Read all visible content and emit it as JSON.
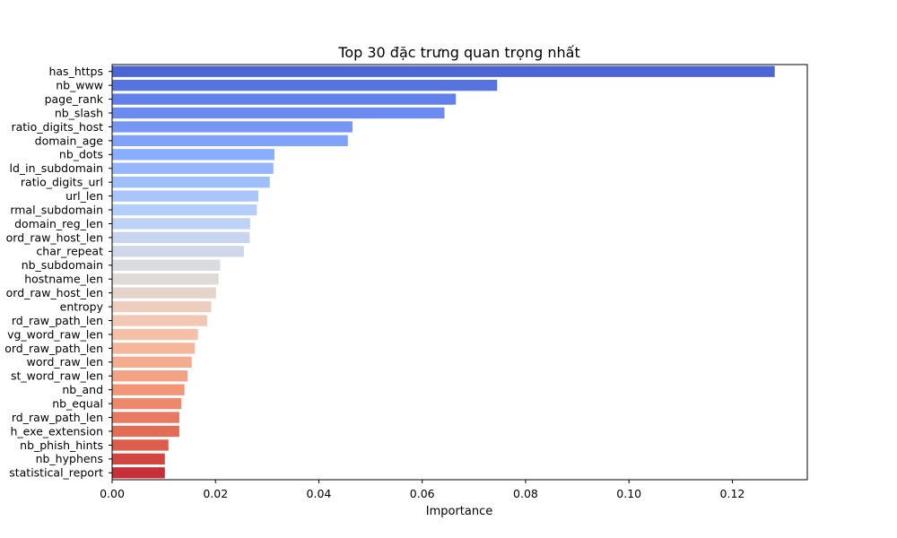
{
  "chart_data": {
    "type": "bar",
    "orientation": "horizontal",
    "title": "Top 30 đặc trưng quan trọng nhất",
    "xlabel": "Importance",
    "ylabel": "",
    "xlim": [
      0,
      0.1345
    ],
    "xticks": [
      "0.00",
      "0.02",
      "0.04",
      "0.06",
      "0.08",
      "0.10",
      "0.12"
    ],
    "grid": false,
    "colormap": "coolwarm",
    "categories": [
      "has_https",
      "nb_www",
      "page_rank",
      "nb_slash",
      "ratio_digits_host",
      "domain_age",
      "nb_dots",
      "ld_in_subdomain",
      "ratio_digits_url",
      "url_len",
      "rmal_subdomain",
      "domain_reg_len",
      "ord_raw_host_len",
      "char_repeat",
      "nb_subdomain",
      "hostname_len",
      "ord_raw_host_len",
      "entropy",
      "rd_raw_path_len",
      "vg_word_raw_len",
      "ord_raw_path_len",
      "word_raw_len",
      "st_word_raw_len",
      "nb_and",
      "nb_equal",
      "rd_raw_path_len",
      "h_exe_extension",
      "nb_phish_hints",
      "nb_hyphens",
      "statistical_report"
    ],
    "values": [
      0.1282,
      0.0745,
      0.0665,
      0.0643,
      0.0465,
      0.0456,
      0.0314,
      0.0312,
      0.0305,
      0.0283,
      0.028,
      0.0267,
      0.0266,
      0.0255,
      0.0209,
      0.0206,
      0.0201,
      0.0192,
      0.0184,
      0.0166,
      0.016,
      0.0154,
      0.0146,
      0.014,
      0.0134,
      0.013,
      0.013,
      0.0109,
      0.0102,
      0.0102
    ]
  }
}
